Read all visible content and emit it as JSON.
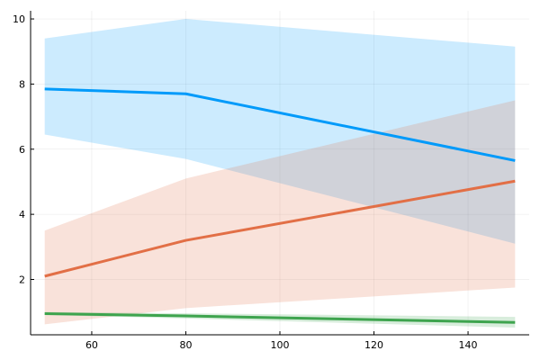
{
  "chart_data": {
    "type": "line",
    "title": "",
    "xlabel": "",
    "ylabel": "",
    "xlim": [
      47,
      153
    ],
    "ylim": [
      0.3,
      10.25
    ],
    "x": [
      50,
      80,
      150
    ],
    "xticks": [
      60,
      80,
      100,
      120,
      140
    ],
    "yticks": [
      2,
      4,
      6,
      8,
      10
    ],
    "grid": true,
    "legend": "none",
    "series": [
      {
        "color": "#009AFA",
        "values": [
          7.85,
          7.7,
          5.65
        ],
        "band_lower": [
          6.45,
          5.7,
          3.1
        ],
        "band_upper": [
          9.4,
          10.0,
          9.15
        ]
      },
      {
        "color": "#E26F46",
        "values": [
          2.1,
          3.2,
          5.02
        ],
        "band_lower": [
          0.62,
          1.12,
          1.75
        ],
        "band_upper": [
          3.5,
          5.1,
          7.5
        ]
      },
      {
        "color": "#3EA44E",
        "values": [
          0.95,
          0.88,
          0.68
        ],
        "band_lower": [
          0.91,
          0.8,
          0.52
        ],
        "band_upper": [
          1.0,
          0.96,
          0.85
        ]
      }
    ]
  }
}
